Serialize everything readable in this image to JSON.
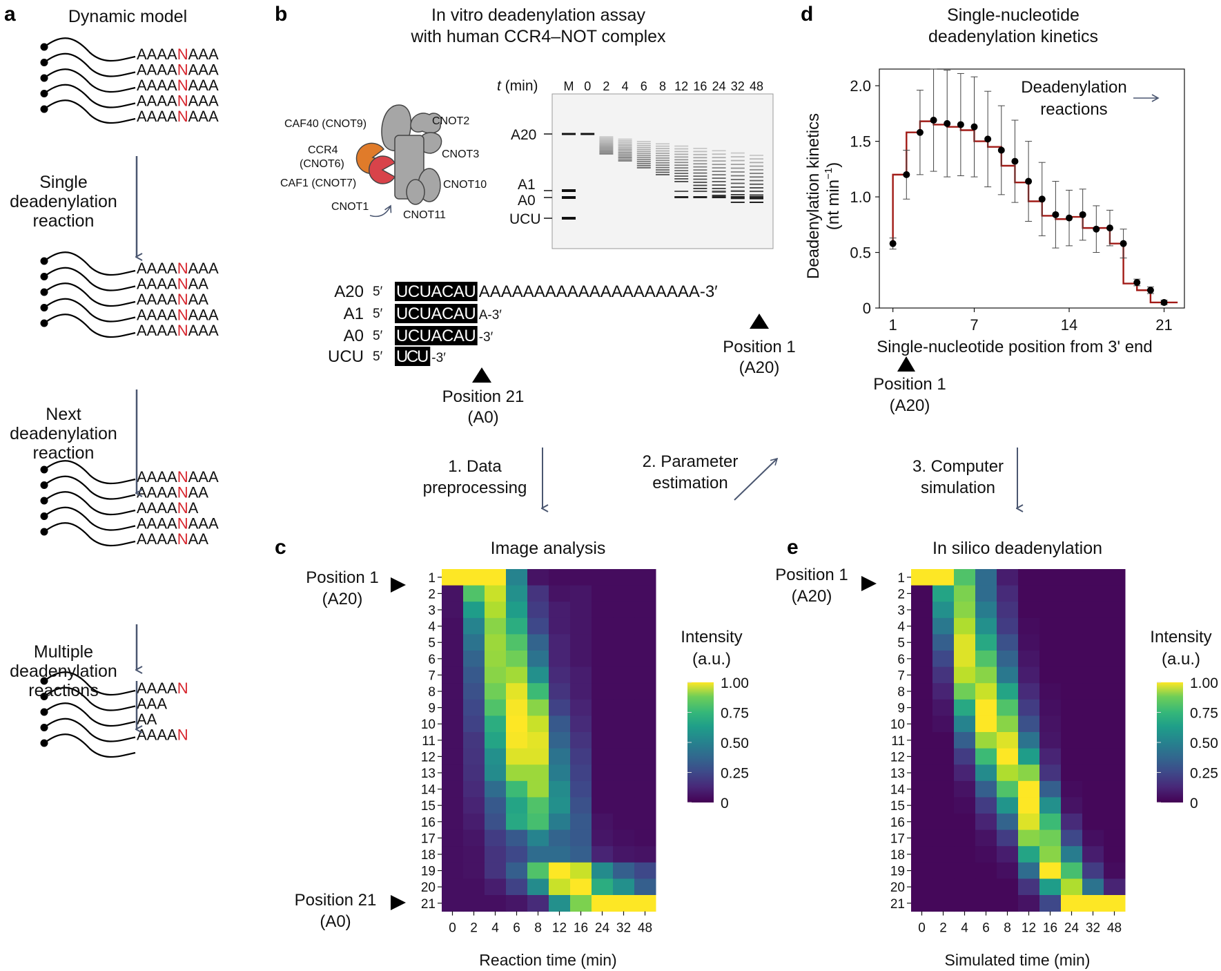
{
  "panel_labels": {
    "a": "a",
    "b": "b",
    "c": "c",
    "d": "d",
    "e": "e"
  },
  "panel_a": {
    "title": "Dynamic model",
    "steps": [
      {
        "label": [
          "Single",
          "deadenylation",
          "reaction"
        ]
      },
      {
        "label": [
          "Next",
          "deadenylation",
          "reaction"
        ]
      },
      {
        "label": [
          "Multiple",
          "deadenylation",
          "reactions"
        ]
      }
    ],
    "groups": [
      [
        [
          "AAAA",
          "N",
          "AAA"
        ],
        [
          "AAAA",
          "N",
          "AAA"
        ],
        [
          "AAAA",
          "N",
          "AAA"
        ],
        [
          "AAAA",
          "N",
          "AAA"
        ],
        [
          "AAAA",
          "N",
          "AAA"
        ]
      ],
      [
        [
          "AAAA",
          "N",
          "AAA"
        ],
        [
          "AAAA",
          "N",
          "AA"
        ],
        [
          "AAAA",
          "N",
          "AA"
        ],
        [
          "AAAA",
          "N",
          "AAA"
        ],
        [
          "AAAA",
          "N",
          "AAA"
        ]
      ],
      [
        [
          "AAAA",
          "N",
          "AAA"
        ],
        [
          "AAAA",
          "N",
          "AA"
        ],
        [
          "AAAA",
          "N",
          "A"
        ],
        [
          "AAAA",
          "N",
          "AAA"
        ],
        [
          "AAAA",
          "N",
          "AA"
        ]
      ],
      [
        [
          "AAAA",
          "N",
          ""
        ],
        [
          "AAA",
          "",
          ""
        ],
        [
          "AA",
          "",
          ""
        ],
        [
          "AAAA",
          "N",
          ""
        ],
        [
          "",
          "",
          ""
        ]
      ]
    ],
    "colors": {
      "highlight": "#d7262e",
      "arrow": "#4a5670"
    }
  },
  "panel_b": {
    "title": [
      "In vitro deadenylation assay",
      "with human CCR4–NOT complex"
    ],
    "complex_labels": {
      "caf40": "CAF40 (CNOT9)",
      "cnot2": "CNOT2",
      "ccr4": "CCR4",
      "ccr4_sub": "(CNOT6)",
      "cnot3": "CNOT3",
      "caf1": "CAF1 (CNOT7)",
      "cnot10": "CNOT10",
      "cnot1": "CNOT1",
      "cnot11": "CNOT11"
    },
    "gel": {
      "time_label_var": "t",
      "time_label_unit": " (min)",
      "lanes": [
        "M",
        "0",
        "2",
        "4",
        "6",
        "8",
        "12",
        "16",
        "24",
        "32",
        "48"
      ],
      "band_labels": [
        "A20",
        "A1",
        "A0",
        "UCU"
      ]
    },
    "sequences": [
      {
        "name": "A20",
        "prime5": "5′",
        "box": "UCUACAU",
        "tail": "AAAAAAAAAAAAAAAAAAAA-3′"
      },
      {
        "name": "A1",
        "prime5": "5′",
        "box": "UCUACAU",
        "tail": "A-3′"
      },
      {
        "name": "A0",
        "prime5": "5′",
        "box": "UCUACAU",
        "tail": "-3′"
      },
      {
        "name": "UCU",
        "prime5": "5′",
        "box": "UCU",
        "tail": "-3′"
      }
    ],
    "pos21": [
      "Position 21",
      "(A0)"
    ],
    "pos1": [
      "Position 1",
      "(A20)"
    ],
    "colors": {
      "ccr4": "#e07b2a",
      "caf1": "#d8434a",
      "grey": "#a6a6a6"
    }
  },
  "workflow": {
    "step1": [
      "1. Data",
      "preprocessing"
    ],
    "step2": [
      "2. Parameter",
      "estimation"
    ],
    "step3": [
      "3. Computer",
      "simulation"
    ]
  },
  "panel_c": {
    "title": "Image analysis",
    "xlabel": "Reaction time (min)",
    "x_ticks": [
      "0",
      "2",
      "4",
      "6",
      "8",
      "12",
      "16",
      "24",
      "32",
      "48"
    ],
    "y_ticks": [
      "1",
      "2",
      "3",
      "4",
      "5",
      "6",
      "7",
      "8",
      "9",
      "10",
      "11",
      "12",
      "13",
      "14",
      "15",
      "16",
      "17",
      "18",
      "19",
      "20",
      "21"
    ],
    "pos1": [
      "Position 1",
      "(A20)"
    ],
    "pos21": [
      "Position 21",
      "(A0)"
    ],
    "colorbar_title": [
      "Intensity",
      "(a.u.)"
    ],
    "colorbar_ticks": [
      "1.00",
      "0.75",
      "0.50",
      "0.25",
      "0"
    ]
  },
  "panel_e": {
    "title": "In silico deadenylation",
    "xlabel": "Simulated time (min)",
    "x_ticks": [
      "0",
      "2",
      "4",
      "6",
      "8",
      "12",
      "16",
      "24",
      "32",
      "48"
    ],
    "y_ticks": [
      "1",
      "2",
      "3",
      "4",
      "5",
      "6",
      "7",
      "8",
      "9",
      "10",
      "11",
      "12",
      "13",
      "14",
      "15",
      "16",
      "17",
      "18",
      "19",
      "20",
      "21"
    ],
    "pos1": [
      "Position 1",
      "(A20)"
    ],
    "colorbar_title": [
      "Intensity",
      "(a.u.)"
    ],
    "colorbar_ticks": [
      "1.00",
      "0.75",
      "0.50",
      "0.25",
      "0"
    ]
  },
  "panel_d": {
    "title": [
      "Single-nucleotide",
      "deadenylation kinetics"
    ],
    "annotation": [
      "Deadenylation",
      "reactions"
    ],
    "pos1": [
      "Position 1",
      "(A20)"
    ]
  },
  "chart_data": [
    {
      "type": "heatmap",
      "title": "Image analysis",
      "xlabel": "Reaction time (min)",
      "ylabel": "",
      "x": [
        "0",
        "2",
        "4",
        "6",
        "8",
        "12",
        "16",
        "24",
        "32",
        "48"
      ],
      "y": [
        1,
        2,
        3,
        4,
        5,
        6,
        7,
        8,
        9,
        10,
        11,
        12,
        13,
        14,
        15,
        16,
        17,
        18,
        19,
        20,
        21
      ],
      "values": [
        [
          1.0,
          1.0,
          1.0,
          0.45,
          0.05,
          0.03,
          0.03,
          0.03,
          0.03,
          0.03
        ],
        [
          0.05,
          0.72,
          0.92,
          0.5,
          0.15,
          0.05,
          0.06,
          0.03,
          0.03,
          0.03
        ],
        [
          0.05,
          0.55,
          0.88,
          0.55,
          0.18,
          0.08,
          0.06,
          0.03,
          0.03,
          0.03
        ],
        [
          0.04,
          0.45,
          0.82,
          0.62,
          0.22,
          0.08,
          0.06,
          0.03,
          0.03,
          0.03
        ],
        [
          0.04,
          0.38,
          0.85,
          0.72,
          0.32,
          0.1,
          0.06,
          0.03,
          0.03,
          0.03
        ],
        [
          0.04,
          0.32,
          0.84,
          0.78,
          0.38,
          0.1,
          0.06,
          0.03,
          0.03,
          0.03
        ],
        [
          0.04,
          0.28,
          0.82,
          0.86,
          0.5,
          0.12,
          0.08,
          0.03,
          0.03,
          0.03
        ],
        [
          0.04,
          0.25,
          0.78,
          0.96,
          0.68,
          0.15,
          0.08,
          0.03,
          0.03,
          0.03
        ],
        [
          0.04,
          0.22,
          0.72,
          0.99,
          0.82,
          0.2,
          0.1,
          0.03,
          0.03,
          0.03
        ],
        [
          0.04,
          0.2,
          0.62,
          1.0,
          0.92,
          0.28,
          0.12,
          0.03,
          0.03,
          0.03
        ],
        [
          0.04,
          0.16,
          0.58,
          0.99,
          0.96,
          0.32,
          0.15,
          0.03,
          0.03,
          0.03
        ],
        [
          0.04,
          0.15,
          0.5,
          0.95,
          0.95,
          0.38,
          0.18,
          0.03,
          0.03,
          0.03
        ],
        [
          0.04,
          0.14,
          0.48,
          0.85,
          0.85,
          0.42,
          0.2,
          0.03,
          0.03,
          0.03
        ],
        [
          0.04,
          0.12,
          0.35,
          0.68,
          0.85,
          0.48,
          0.22,
          0.03,
          0.03,
          0.03
        ],
        [
          0.04,
          0.1,
          0.28,
          0.58,
          0.72,
          0.5,
          0.25,
          0.03,
          0.03,
          0.03
        ],
        [
          0.04,
          0.08,
          0.25,
          0.6,
          0.7,
          0.42,
          0.28,
          0.05,
          0.03,
          0.03
        ],
        [
          0.04,
          0.06,
          0.18,
          0.28,
          0.45,
          0.32,
          0.28,
          0.06,
          0.04,
          0.03
        ],
        [
          0.04,
          0.05,
          0.15,
          0.22,
          0.35,
          0.35,
          0.3,
          0.1,
          0.06,
          0.05
        ],
        [
          0.04,
          0.05,
          0.15,
          0.3,
          0.72,
          1.0,
          0.92,
          0.48,
          0.3,
          0.22
        ],
        [
          0.04,
          0.04,
          0.08,
          0.2,
          0.48,
          0.92,
          1.0,
          0.62,
          0.5,
          0.3
        ],
        [
          0.04,
          0.04,
          0.04,
          0.06,
          0.12,
          0.5,
          0.8,
          1.0,
          1.0,
          1.0
        ]
      ]
    },
    {
      "type": "heatmap",
      "title": "In silico deadenylation",
      "xlabel": "Simulated time (min)",
      "ylabel": "",
      "x": [
        "0",
        "2",
        "4",
        "6",
        "8",
        "12",
        "16",
        "24",
        "32",
        "48"
      ],
      "y": [
        1,
        2,
        3,
        4,
        5,
        6,
        7,
        8,
        9,
        10,
        11,
        12,
        13,
        14,
        15,
        16,
        17,
        18,
        19,
        20,
        21
      ],
      "values": [
        [
          1.0,
          1.0,
          0.72,
          0.35,
          0.08,
          0.02,
          0.02,
          0.02,
          0.02,
          0.02
        ],
        [
          0.02,
          0.58,
          0.8,
          0.35,
          0.12,
          0.02,
          0.02,
          0.02,
          0.02,
          0.02
        ],
        [
          0.02,
          0.5,
          0.82,
          0.42,
          0.15,
          0.02,
          0.02,
          0.02,
          0.02,
          0.02
        ],
        [
          0.02,
          0.4,
          0.88,
          0.5,
          0.18,
          0.03,
          0.02,
          0.02,
          0.02,
          0.02
        ],
        [
          0.02,
          0.3,
          0.95,
          0.6,
          0.25,
          0.04,
          0.02,
          0.02,
          0.02,
          0.02
        ],
        [
          0.02,
          0.22,
          0.95,
          0.72,
          0.32,
          0.06,
          0.02,
          0.02,
          0.02,
          0.02
        ],
        [
          0.02,
          0.15,
          0.9,
          0.82,
          0.4,
          0.08,
          0.02,
          0.02,
          0.02,
          0.02
        ],
        [
          0.02,
          0.1,
          0.78,
          0.92,
          0.58,
          0.12,
          0.03,
          0.02,
          0.02,
          0.02
        ],
        [
          0.02,
          0.06,
          0.6,
          1.0,
          0.72,
          0.18,
          0.04,
          0.02,
          0.02,
          0.02
        ],
        [
          0.02,
          0.04,
          0.45,
          1.0,
          0.82,
          0.25,
          0.05,
          0.02,
          0.02,
          0.02
        ],
        [
          0.02,
          0.02,
          0.3,
          0.85,
          0.95,
          0.38,
          0.06,
          0.02,
          0.02,
          0.02
        ],
        [
          0.02,
          0.02,
          0.18,
          0.68,
          1.0,
          0.55,
          0.1,
          0.02,
          0.02,
          0.02
        ],
        [
          0.02,
          0.02,
          0.1,
          0.48,
          0.88,
          0.82,
          0.15,
          0.02,
          0.02,
          0.02
        ],
        [
          0.02,
          0.02,
          0.05,
          0.3,
          0.72,
          1.0,
          0.3,
          0.03,
          0.02,
          0.02
        ],
        [
          0.02,
          0.02,
          0.03,
          0.18,
          0.52,
          1.0,
          0.5,
          0.05,
          0.02,
          0.02
        ],
        [
          0.02,
          0.02,
          0.02,
          0.1,
          0.32,
          0.95,
          0.68,
          0.12,
          0.02,
          0.02
        ],
        [
          0.02,
          0.02,
          0.02,
          0.05,
          0.18,
          0.82,
          0.78,
          0.22,
          0.04,
          0.02
        ],
        [
          0.02,
          0.02,
          0.02,
          0.03,
          0.08,
          0.58,
          0.82,
          0.42,
          0.08,
          0.02
        ],
        [
          0.02,
          0.02,
          0.02,
          0.02,
          0.04,
          0.35,
          1.0,
          0.7,
          0.18,
          0.03
        ],
        [
          0.02,
          0.02,
          0.02,
          0.02,
          0.02,
          0.15,
          0.55,
          0.88,
          0.38,
          0.1
        ],
        [
          0.02,
          0.02,
          0.02,
          0.02,
          0.02,
          0.05,
          0.22,
          1.0,
          1.0,
          1.0
        ]
      ]
    },
    {
      "type": "line",
      "title": "Single-nucleotide deadenylation kinetics",
      "xlabel": "Single-nucleotide position from 3' end",
      "ylabel": "Deadenylation kinetics (nt min−1)",
      "ylabel_parts": [
        "Deadenylation kinetics",
        "(nt min",
        "−1",
        ")"
      ],
      "xlim": [
        0,
        22.5
      ],
      "ylim": [
        0,
        2.15
      ],
      "x_ticks": [
        1,
        7,
        14,
        21
      ],
      "y_ticks": [
        "0",
        "0.5",
        "1.0",
        "1.5",
        "2.0"
      ],
      "step_line": {
        "name": "",
        "values": [
          1.2,
          1.58,
          1.68,
          1.65,
          1.63,
          1.6,
          1.5,
          1.45,
          1.28,
          1.13,
          0.96,
          0.83,
          0.8,
          0.82,
          0.72,
          0.72,
          0.58,
          0.22,
          0.16,
          0.05,
          0.05
        ]
      },
      "points": {
        "name": "",
        "x": [
          1,
          2,
          3,
          4,
          5,
          6,
          7,
          8,
          9,
          10,
          11,
          12,
          13,
          14,
          15,
          16,
          17,
          18,
          19,
          20,
          21
        ],
        "y": [
          0.58,
          1.2,
          1.58,
          1.69,
          1.66,
          1.65,
          1.63,
          1.52,
          1.42,
          1.32,
          1.14,
          0.98,
          0.84,
          0.81,
          0.84,
          0.71,
          0.72,
          0.58,
          0.23,
          0.16,
          0.05
        ],
        "err": [
          0.05,
          0.22,
          0.38,
          0.46,
          0.48,
          0.46,
          0.45,
          0.43,
          0.4,
          0.37,
          0.36,
          0.33,
          0.3,
          0.25,
          0.23,
          0.21,
          0.16,
          0.13,
          0.03,
          0.03,
          0.02
        ]
      },
      "colors": {
        "step": "#a11a16",
        "points": "#000000"
      }
    }
  ]
}
